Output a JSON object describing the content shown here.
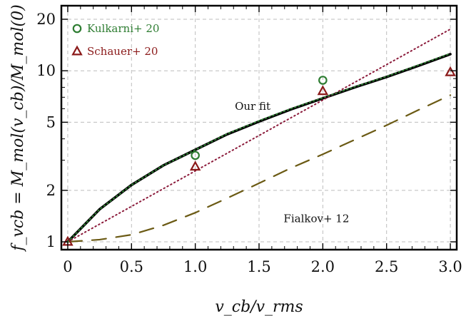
{
  "chart_data": {
    "type": "line",
    "xlabel": "v_cb/v_rms",
    "ylabel": "f_vcb = M_mol(v_cb)/M_mol(0)",
    "xlim": [
      -0.05,
      3.05
    ],
    "ylim": [
      0.9,
      24
    ],
    "y_scale": "log",
    "grid": true,
    "x_ticks": [
      0,
      0.5,
      1.0,
      1.5,
      2.0,
      2.5,
      3.0
    ],
    "x_tick_labels": [
      "0",
      "0.5",
      "1.0",
      "1.5",
      "2.0",
      "2.5",
      "3.0"
    ],
    "y_ticks": [
      1,
      2,
      5,
      10,
      20
    ],
    "y_tick_labels": [
      "1",
      "2",
      "5",
      "10",
      "20"
    ],
    "legend_position": "top-left",
    "series": [
      {
        "name": "Our fit",
        "style": "solid",
        "color": "#000000",
        "x": [
          0,
          0.25,
          0.5,
          0.75,
          1.0,
          1.25,
          1.5,
          1.75,
          2.0,
          2.25,
          2.5,
          2.75,
          3.0
        ],
        "y": [
          1.0,
          1.55,
          2.15,
          2.8,
          3.45,
          4.25,
          5.05,
          5.95,
          6.9,
          8.0,
          9.2,
          10.7,
          12.5
        ]
      },
      {
        "name": "Fialkov+ 12",
        "style": "dashed",
        "color": "#6b5a14",
        "x": [
          0,
          0.25,
          0.5,
          0.75,
          1.0,
          1.25,
          1.5,
          1.75,
          2.0,
          2.25,
          2.5,
          2.75,
          3.0
        ],
        "y": [
          1.0,
          1.03,
          1.1,
          1.25,
          1.48,
          1.8,
          2.2,
          2.7,
          3.25,
          3.95,
          4.8,
          5.9,
          7.2
        ]
      },
      {
        "name": "",
        "style": "dotted",
        "color": "#8b1a3a",
        "x": [
          0,
          3.0
        ],
        "y": [
          1.0,
          17.5
        ]
      },
      {
        "name": "",
        "style": "dotted",
        "color": "#2e7d32",
        "x": [
          0,
          0.25,
          0.5,
          0.75,
          1.0,
          1.25,
          1.5,
          1.75,
          2.0,
          2.25,
          2.5,
          2.75,
          3.0
        ],
        "y": [
          1.0,
          1.55,
          2.15,
          2.8,
          3.45,
          4.28,
          5.1,
          6.0,
          6.95,
          8.05,
          9.25,
          10.8,
          12.6
        ]
      }
    ],
    "points": [
      {
        "name": "Kulkarni+ 20",
        "marker": "circle",
        "color": "#2e7d32",
        "x": [
          1.0,
          2.0
        ],
        "y": [
          3.2,
          8.8
        ]
      },
      {
        "name": "Schauer+ 20",
        "marker": "triangle",
        "color": "#8b1a1a",
        "x": [
          0,
          1.0,
          2.0,
          3.0
        ],
        "y": [
          1.0,
          2.75,
          7.6,
          9.8
        ]
      }
    ],
    "annotations": [
      {
        "text": "Our fit",
        "x": 1.45,
        "y": 5.9
      },
      {
        "text": "Fialkov+ 12",
        "x": 1.95,
        "y": 1.3
      }
    ]
  }
}
